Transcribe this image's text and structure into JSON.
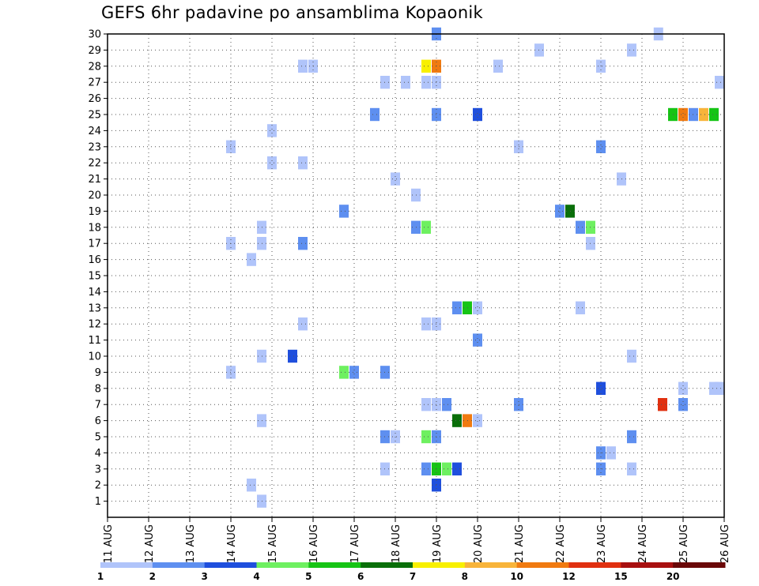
{
  "chart_data": {
    "type": "heatmap",
    "title": "GEFS 6hr padavine po ansamblima Kopaonik",
    "xlabel": "",
    "ylabel": "",
    "x_ticks": [
      "11 AUG",
      "12 AUG",
      "13 AUG",
      "14 AUG",
      "15 AUG",
      "16 AUG",
      "17 AUG",
      "18 AUG",
      "19 AUG",
      "20 AUG",
      "21 AUG",
      "22 AUG",
      "23 AUG",
      "24 AUG",
      "25 AUG",
      "26 AUG"
    ],
    "y_ticks": [
      "1",
      "2",
      "3",
      "4",
      "5",
      "6",
      "7",
      "8",
      "9",
      "10",
      "11",
      "12",
      "13",
      "14",
      "15",
      "16",
      "17",
      "18",
      "19",
      "20",
      "21",
      "22",
      "23",
      "24",
      "25",
      "26",
      "27",
      "28",
      "29",
      "30"
    ],
    "y_range": [
      0,
      30
    ],
    "x_range_days": [
      0,
      15
    ],
    "grid": true,
    "legend": {
      "placement": "bottom",
      "labels": [
        "1",
        "2",
        "3",
        "4",
        "5",
        "6",
        "7",
        "8",
        "10",
        "12",
        "15",
        "20"
      ],
      "colors": [
        "#b0c4fa",
        "#5e8ff0",
        "#1f4fdd",
        "#6ef060",
        "#16c415",
        "#0a6f0a",
        "#f8f000",
        "#f8b43a",
        "#f07a10",
        "#e03010",
        "#a81010",
        "#6a0808"
      ]
    },
    "cells_note": "cells: [day offset from 11 AUG 00z in days, ensemble member, color class index]",
    "cells": [
      [
        8.0,
        30,
        1
      ],
      [
        13.4,
        30,
        0
      ],
      [
        10.5,
        29,
        0
      ],
      [
        12.75,
        29,
        0
      ],
      [
        4.75,
        28,
        0
      ],
      [
        5.0,
        28,
        0
      ],
      [
        7.75,
        28,
        6
      ],
      [
        8.0,
        28,
        8
      ],
      [
        9.5,
        28,
        0
      ],
      [
        12.0,
        28,
        0
      ],
      [
        6.75,
        27,
        0
      ],
      [
        7.25,
        27,
        0
      ],
      [
        7.75,
        27,
        0
      ],
      [
        8.0,
        27,
        0
      ],
      [
        14.95,
        27,
        0
      ],
      [
        6.5,
        25,
        1
      ],
      [
        8.0,
        25,
        1
      ],
      [
        9.0,
        25,
        2
      ],
      [
        13.75,
        25,
        4
      ],
      [
        14.0,
        25,
        8
      ],
      [
        14.25,
        25,
        1
      ],
      [
        14.5,
        25,
        7
      ],
      [
        14.75,
        25,
        4
      ],
      [
        4.0,
        24,
        0
      ],
      [
        3.0,
        23,
        0
      ],
      [
        10.0,
        23,
        0
      ],
      [
        12.0,
        23,
        1
      ],
      [
        4.0,
        22,
        0
      ],
      [
        4.75,
        22,
        0
      ],
      [
        7.0,
        21,
        0
      ],
      [
        12.5,
        21,
        0
      ],
      [
        7.5,
        20,
        0
      ],
      [
        5.75,
        19,
        1
      ],
      [
        11.0,
        19,
        1
      ],
      [
        11.25,
        19,
        5
      ],
      [
        3.75,
        18,
        0
      ],
      [
        7.5,
        18,
        1
      ],
      [
        7.75,
        18,
        3
      ],
      [
        11.5,
        18,
        1
      ],
      [
        11.75,
        18,
        3
      ],
      [
        3.0,
        17,
        0
      ],
      [
        3.75,
        17,
        0
      ],
      [
        4.75,
        17,
        1
      ],
      [
        11.75,
        17,
        0
      ],
      [
        3.5,
        16,
        0
      ],
      [
        8.5,
        13,
        1
      ],
      [
        8.75,
        13,
        4
      ],
      [
        9.0,
        13,
        0
      ],
      [
        11.5,
        13,
        0
      ],
      [
        4.75,
        12,
        0
      ],
      [
        7.75,
        12,
        0
      ],
      [
        8.0,
        12,
        0
      ],
      [
        9.0,
        11,
        1
      ],
      [
        3.75,
        10,
        0
      ],
      [
        4.5,
        10,
        2
      ],
      [
        12.75,
        10,
        0
      ],
      [
        3.0,
        9,
        0
      ],
      [
        5.75,
        9,
        3
      ],
      [
        6.0,
        9,
        1
      ],
      [
        6.75,
        9,
        1
      ],
      [
        12.0,
        8,
        2
      ],
      [
        14.0,
        8,
        0
      ],
      [
        14.75,
        8,
        0
      ],
      [
        15.0,
        8,
        0
      ],
      [
        7.75,
        7,
        0
      ],
      [
        8.0,
        7,
        0
      ],
      [
        8.25,
        7,
        1
      ],
      [
        10.0,
        7,
        1
      ],
      [
        13.5,
        7,
        9
      ],
      [
        14.0,
        7,
        1
      ],
      [
        3.75,
        6,
        0
      ],
      [
        8.5,
        6,
        5
      ],
      [
        8.75,
        6,
        8
      ],
      [
        9.0,
        6,
        0
      ],
      [
        6.75,
        5,
        1
      ],
      [
        7.0,
        5,
        0
      ],
      [
        7.75,
        5,
        3
      ],
      [
        8.0,
        5,
        1
      ],
      [
        12.75,
        5,
        1
      ],
      [
        12.0,
        4,
        1
      ],
      [
        12.25,
        4,
        0
      ],
      [
        6.75,
        3,
        0
      ],
      [
        7.75,
        3,
        1
      ],
      [
        8.0,
        3,
        4
      ],
      [
        8.25,
        3,
        3
      ],
      [
        8.5,
        3,
        2
      ],
      [
        12.0,
        3,
        1
      ],
      [
        12.75,
        3,
        0
      ],
      [
        3.5,
        2,
        0
      ],
      [
        8.0,
        2,
        2
      ],
      [
        3.75,
        1,
        0
      ]
    ]
  }
}
